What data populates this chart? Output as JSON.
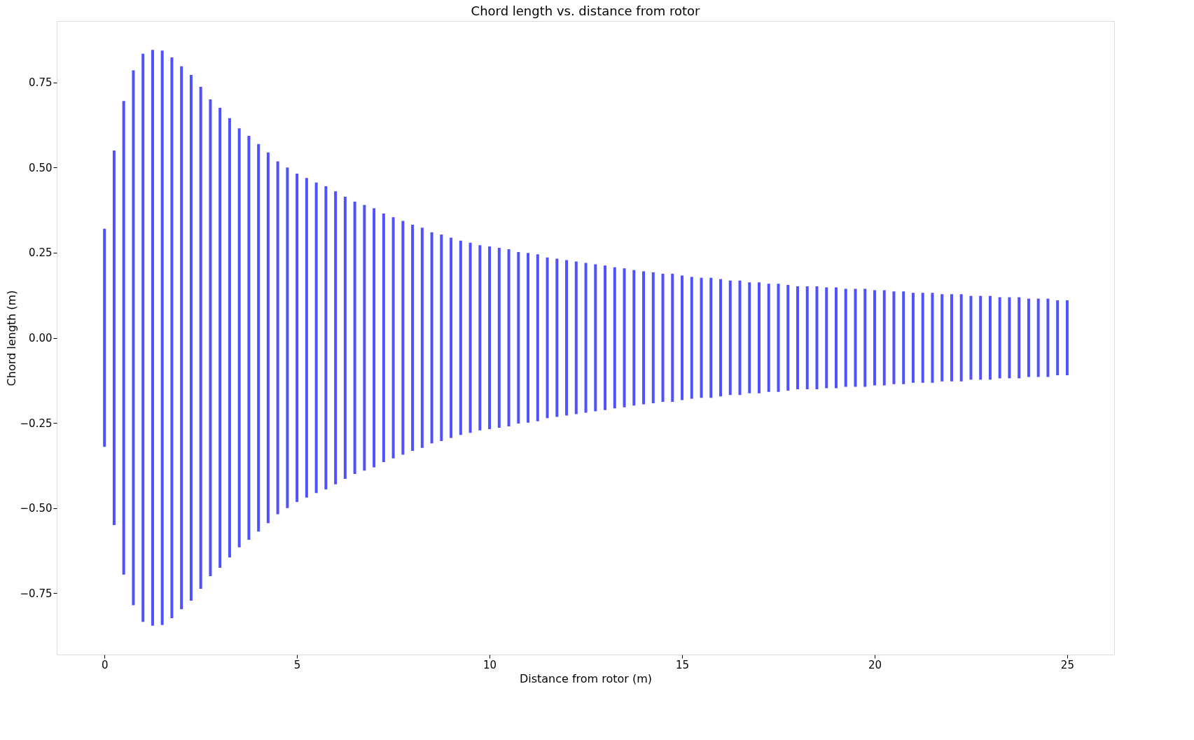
{
  "chart_data": {
    "type": "bar",
    "title": "Chord length vs. distance from rotor",
    "xlabel": "Distance from rotor (m)",
    "ylabel": "Chord length (m)",
    "x": [
      0,
      0.25,
      0.5,
      0.75,
      1,
      1.25,
      1.5,
      1.75,
      2,
      2.25,
      2.5,
      2.75,
      3,
      3.25,
      3.5,
      3.75,
      4,
      4.25,
      4.5,
      4.75,
      5,
      5.25,
      5.5,
      5.75,
      6,
      6.25,
      6.5,
      6.75,
      7,
      7.25,
      7.5,
      7.75,
      8,
      8.25,
      8.5,
      8.75,
      9,
      9.25,
      9.5,
      9.75,
      10,
      10.25,
      10.5,
      10.75,
      11,
      11.25,
      11.5,
      11.75,
      12,
      12.25,
      12.5,
      12.75,
      13,
      13.25,
      13.5,
      13.75,
      14,
      14.25,
      14.5,
      14.75,
      15,
      15.25,
      15.5,
      15.75,
      16,
      16.25,
      16.5,
      16.75,
      17,
      17.25,
      17.5,
      17.75,
      18,
      18.25,
      18.5,
      18.75,
      19,
      19.25,
      19.5,
      19.75,
      20,
      20.25,
      20.5,
      20.75,
      21,
      21.25,
      21.5,
      21.75,
      22,
      22.25,
      22.5,
      22.75,
      23,
      23.25,
      23.5,
      23.75,
      24,
      24.25,
      24.5,
      24.75,
      25
    ],
    "series": [
      {
        "color": "#5050ff",
        "values": [
          0.64,
          1.1,
          1.39,
          1.57,
          1.668,
          1.69,
          1.686,
          1.646,
          1.594,
          1.544,
          1.474,
          1.4,
          1.35,
          1.29,
          1.23,
          1.186,
          1.138,
          1.088,
          1.036,
          1.0,
          0.964,
          0.938,
          0.912,
          0.89,
          0.86,
          0.828,
          0.8,
          0.78,
          0.76,
          0.73,
          0.708,
          0.686,
          0.664,
          0.646,
          0.62,
          0.606,
          0.588,
          0.57,
          0.558,
          0.544,
          0.536,
          0.528,
          0.52,
          0.504,
          0.498,
          0.49,
          0.472,
          0.464,
          0.456,
          0.448,
          0.44,
          0.432,
          0.424,
          0.414,
          0.408,
          0.398,
          0.39,
          0.384,
          0.376,
          0.376,
          0.366,
          0.358,
          0.352,
          0.352,
          0.344,
          0.336,
          0.336,
          0.326,
          0.326,
          0.318,
          0.318,
          0.31,
          0.302,
          0.302,
          0.302,
          0.296,
          0.296,
          0.288,
          0.288,
          0.288,
          0.28,
          0.28,
          0.272,
          0.272,
          0.264,
          0.264,
          0.264,
          0.256,
          0.256,
          0.256,
          0.246,
          0.246,
          0.246,
          0.238,
          0.238,
          0.238,
          0.23,
          0.23,
          0.23,
          0.22,
          0.22
        ],
        "base": [
          -0.32,
          -0.55,
          -0.695,
          -0.785,
          -0.834,
          -0.845,
          -0.843,
          -0.823,
          -0.797,
          -0.772,
          -0.737,
          -0.7,
          -0.675,
          -0.645,
          -0.615,
          -0.593,
          -0.569,
          -0.544,
          -0.518,
          -0.5,
          -0.482,
          -0.469,
          -0.456,
          -0.445,
          -0.43,
          -0.414,
          -0.4,
          -0.39,
          -0.38,
          -0.365,
          -0.354,
          -0.343,
          -0.332,
          -0.323,
          -0.31,
          -0.303,
          -0.294,
          -0.285,
          -0.279,
          -0.272,
          -0.268,
          -0.264,
          -0.26,
          -0.252,
          -0.249,
          -0.245,
          -0.236,
          -0.232,
          -0.228,
          -0.224,
          -0.22,
          -0.216,
          -0.212,
          -0.207,
          -0.204,
          -0.199,
          -0.195,
          -0.192,
          -0.188,
          -0.188,
          -0.183,
          -0.179,
          -0.176,
          -0.176,
          -0.172,
          -0.168,
          -0.168,
          -0.163,
          -0.163,
          -0.159,
          -0.159,
          -0.155,
          -0.151,
          -0.151,
          -0.151,
          -0.148,
          -0.148,
          -0.144,
          -0.144,
          -0.144,
          -0.14,
          -0.14,
          -0.136,
          -0.136,
          -0.132,
          -0.132,
          -0.132,
          -0.128,
          -0.128,
          -0.128,
          -0.123,
          -0.123,
          -0.123,
          -0.119,
          -0.119,
          -0.119,
          -0.115,
          -0.115,
          -0.115,
          -0.11,
          -0.11
        ]
      }
    ],
    "xlim": [
      -1.24,
      26.22
    ],
    "ylim": [
      -0.93,
      0.93
    ],
    "xticks": [
      0,
      5,
      10,
      15,
      20,
      25
    ],
    "yticks": [
      {
        "value": -0.75,
        "label": "−0.75"
      },
      {
        "value": -0.5,
        "label": "−0.50"
      },
      {
        "value": -0.25,
        "label": "−0.25"
      },
      {
        "value": 0,
        "label": "0.00"
      },
      {
        "value": 0.25,
        "label": "0.25"
      },
      {
        "value": 0.5,
        "label": "0.50"
      },
      {
        "value": 0.75,
        "label": "0.75"
      }
    ],
    "grid": false
  }
}
